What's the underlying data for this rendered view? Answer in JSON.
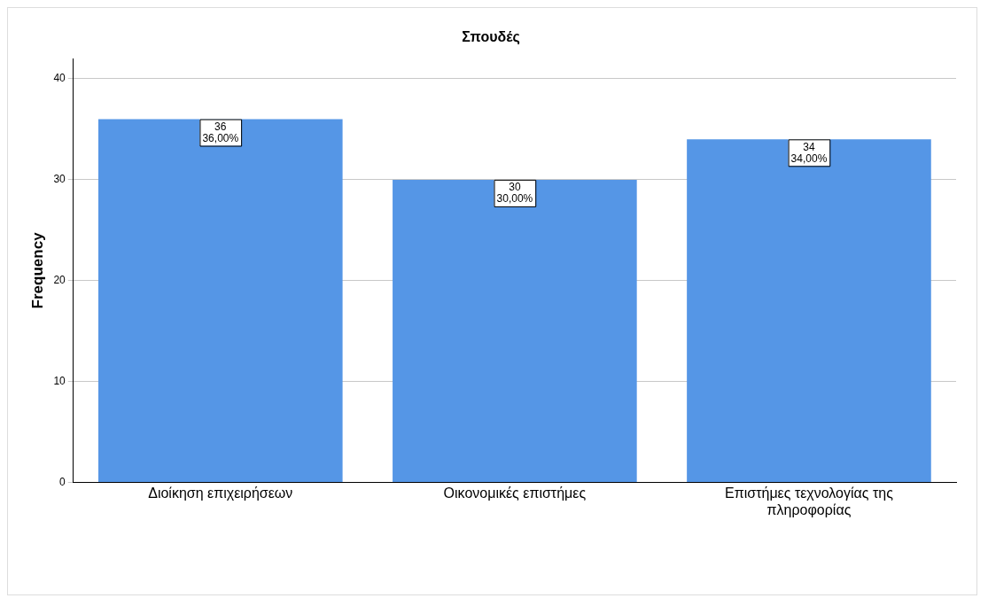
{
  "chart_data": {
    "type": "bar",
    "title": "Σπουδές",
    "ylabel": "Frequency",
    "categories": [
      "Διοίκηση επιχειρήσεων",
      "Οικονομικές επιστήμες",
      "Επιστήμες τεχνολογίας της πληροφορίας"
    ],
    "values": [
      36,
      30,
      34
    ],
    "color": "#5596e6",
    "value_labels": [
      "36\n36,00%",
      "30\n30,00%",
      "34\n34,00%"
    ],
    "ylim": [
      0,
      42
    ],
    "yticks": [
      0,
      10,
      20,
      30,
      40
    ],
    "grid": "y",
    "legend": false
  }
}
